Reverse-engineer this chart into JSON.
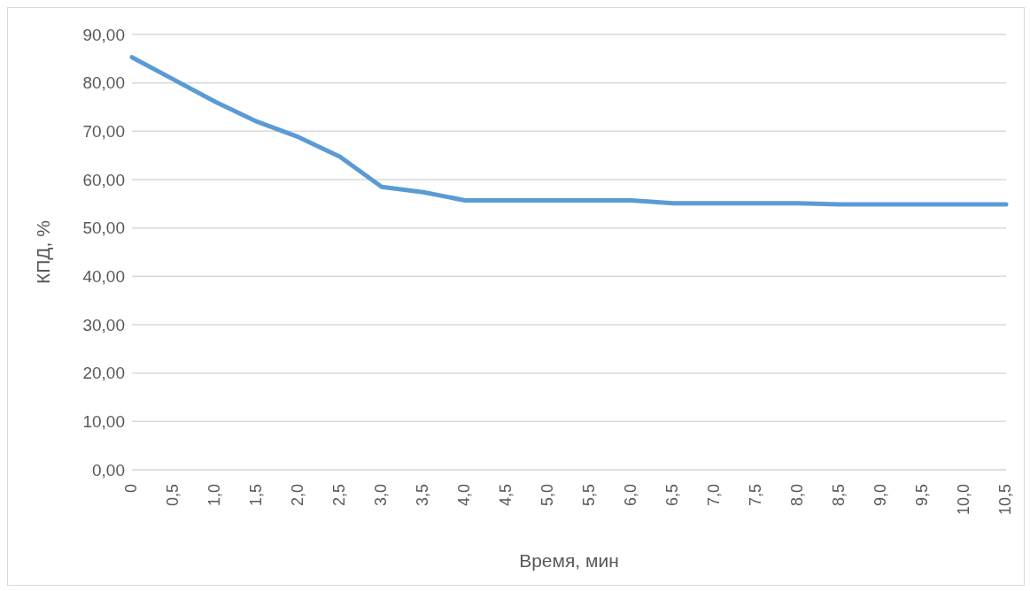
{
  "chart_data": {
    "type": "line",
    "xlabel": "Время, мин",
    "ylabel": "КПД, %",
    "categories": [
      "0",
      "0,5",
      "1,0",
      "1,5",
      "2,0",
      "2,5",
      "3,0",
      "3,5",
      "4,0",
      "4,5",
      "5,0",
      "5,5",
      "6,0",
      "6,5",
      "7,0",
      "7,5",
      "8,0",
      "8,5",
      "9,0",
      "9,5",
      "10,0",
      "10,5"
    ],
    "series": [
      {
        "color": "#5b9bd5",
        "values": [
          85.3,
          80.7,
          76.1,
          72.0,
          68.8,
          64.7,
          58.5,
          57.4,
          55.7,
          55.7,
          55.7,
          55.7,
          55.7,
          55.1,
          55.1,
          55.1,
          55.1,
          54.9,
          54.9,
          54.9,
          54.9,
          54.9
        ]
      }
    ],
    "ylim": [
      0,
      90
    ],
    "yticks": [
      {
        "value": 0,
        "label": "0,00"
      },
      {
        "value": 10,
        "label": "10,00"
      },
      {
        "value": 20,
        "label": "20,00"
      },
      {
        "value": 30,
        "label": "30,00"
      },
      {
        "value": 40,
        "label": "40,00"
      },
      {
        "value": 50,
        "label": "50,00"
      },
      {
        "value": 60,
        "label": "60,00"
      },
      {
        "value": 70,
        "label": "70,00"
      },
      {
        "value": 80,
        "label": "80,00"
      },
      {
        "value": 90,
        "label": "90,00"
      }
    ],
    "grid": "y",
    "legend": false,
    "marker": "none",
    "line_style": "solid"
  }
}
